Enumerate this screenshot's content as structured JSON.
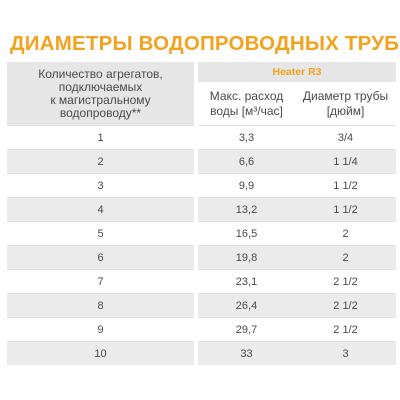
{
  "title": {
    "text": "ДИАМЕТРЫ ВОДОПРОВОДНЫХ ТРУБ",
    "mark": "*"
  },
  "table": {
    "header_left_lines": [
      "Количество агрегатов,",
      "подключаемых",
      "к магистральному",
      "водопроводу**"
    ],
    "brand": "Heater R3",
    "col2_lines": [
      "Макс. расход",
      "воды [м³/час]"
    ],
    "col3_lines": [
      "Диаметр трубы",
      "[дюйм]"
    ],
    "rows": [
      {
        "count": "1",
        "flow": "3,3",
        "diameter": "3/4"
      },
      {
        "count": "2",
        "flow": "6,6",
        "diameter": "1 1/4"
      },
      {
        "count": "3",
        "flow": "9,9",
        "diameter": "1 1/2"
      },
      {
        "count": "4",
        "flow": "13,2",
        "diameter": "1 1/2"
      },
      {
        "count": "5",
        "flow": "16,5",
        "diameter": "2"
      },
      {
        "count": "6",
        "flow": "19,8",
        "diameter": "2"
      },
      {
        "count": "7",
        "flow": "23,1",
        "diameter": "2 1/2"
      },
      {
        "count": "8",
        "flow": "26,4",
        "diameter": "2 1/2"
      },
      {
        "count": "9",
        "flow": "29,7",
        "diameter": "2 1/2"
      },
      {
        "count": "10",
        "flow": "33",
        "diameter": "3"
      }
    ]
  }
}
